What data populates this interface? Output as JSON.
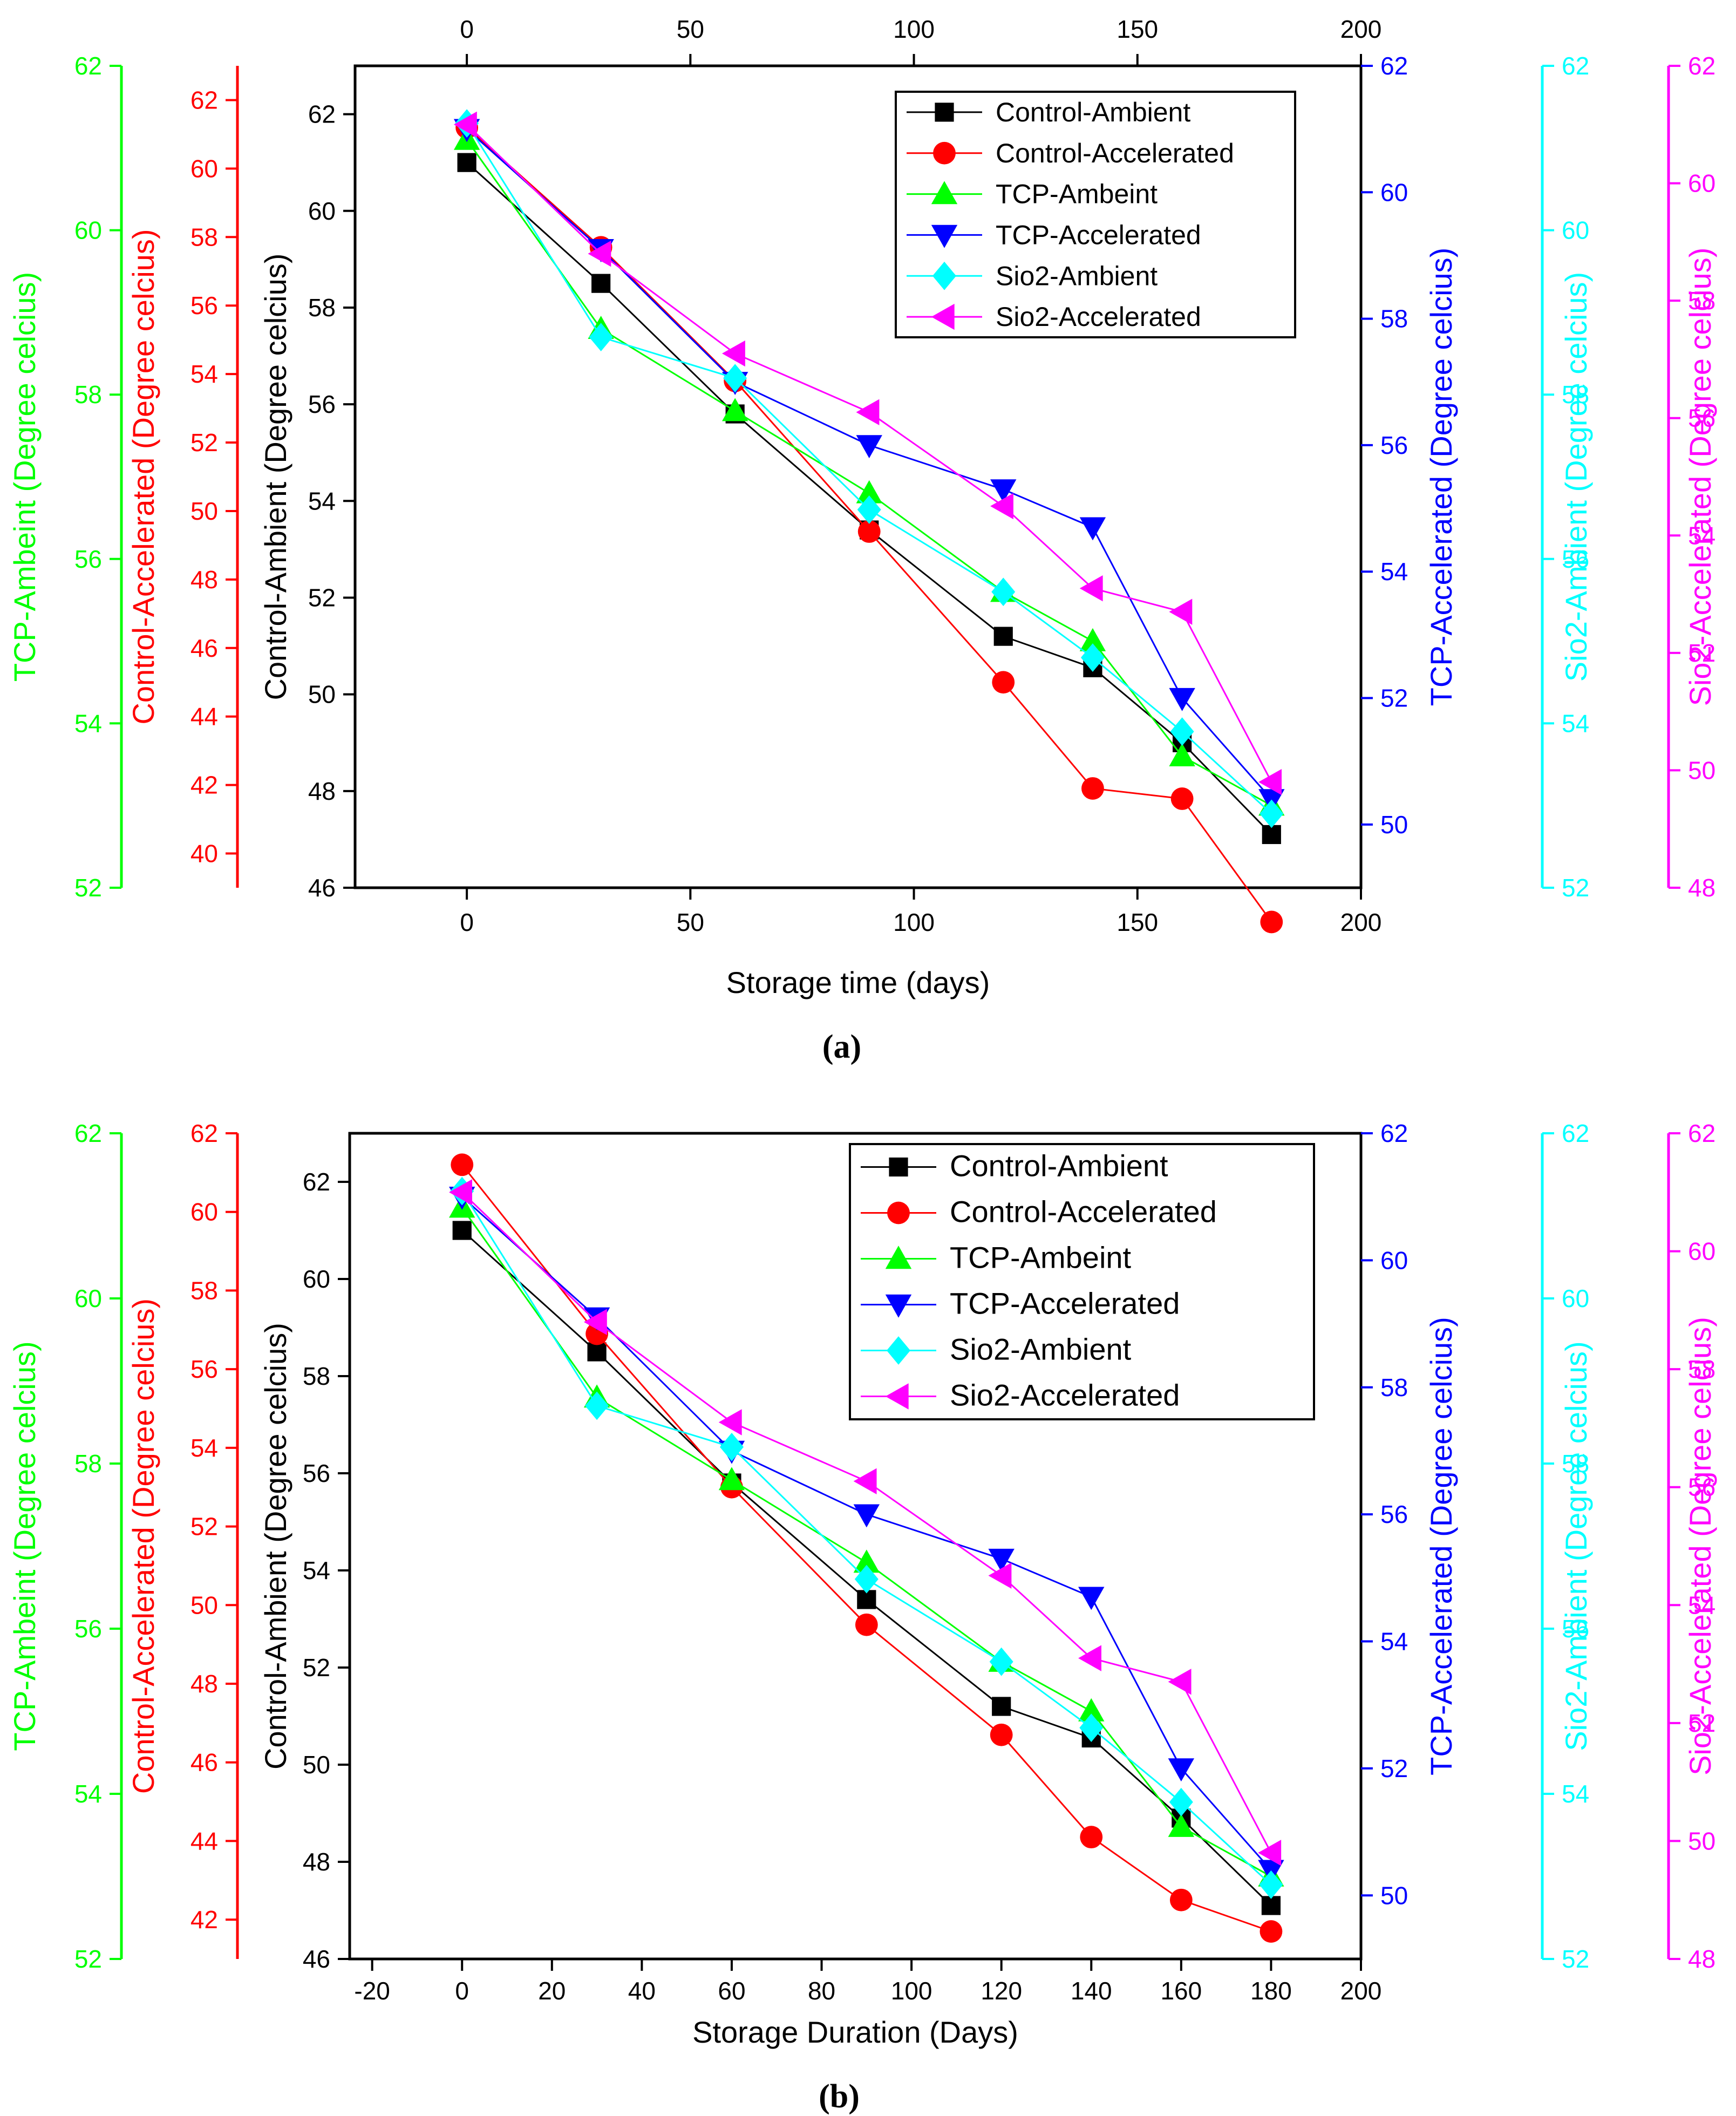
{
  "chart_data": [
    {
      "type": "line",
      "panel_label": "(a)",
      "xlabel": "Storage time (days)",
      "xlim": [
        -25,
        200
      ],
      "xticks": [
        0,
        50,
        100,
        150,
        200
      ],
      "top_xticks": [
        0,
        50,
        100,
        150,
        200
      ],
      "x": [
        0,
        30,
        60,
        90,
        120,
        140,
        160,
        180
      ],
      "legend_position": "top-right",
      "axes": {
        "control_ambient": {
          "label": "Control-Ambient (Degree celcius)",
          "color": "#000000",
          "ylim": [
            46,
            63
          ],
          "ticks": [
            46,
            48,
            50,
            52,
            54,
            56,
            58,
            60,
            62
          ]
        },
        "control_accelerated": {
          "label": "Control-Accelerated (Degree celcius)",
          "color": "#ff0000",
          "ylim": [
            39,
            63
          ],
          "ticks": [
            40,
            42,
            44,
            46,
            48,
            50,
            52,
            54,
            56,
            58,
            60,
            62
          ]
        },
        "tcp_ambient": {
          "label": "TCP-Ambeint (Degree celcius)",
          "color": "#00ff00",
          "ylim": [
            52,
            62
          ],
          "ticks": [
            52,
            54,
            56,
            58,
            60,
            62
          ]
        },
        "tcp_accelerated": {
          "label": "TCP-Accelerated (Degree celcius)",
          "color": "#0000ff",
          "ylim": [
            49,
            62
          ],
          "ticks": [
            50,
            52,
            54,
            56,
            58,
            60,
            62
          ]
        },
        "sio2_ambient": {
          "label": "Sio2-Ambient (Degree celcius)",
          "color": "#00ffff",
          "ylim": [
            52,
            62
          ],
          "ticks": [
            52,
            54,
            56,
            58,
            60,
            62
          ]
        },
        "sio2_accelerated": {
          "label": "Sio2-Accelerated (Degree celcius)",
          "color": "#ff00ff",
          "ylim": [
            48,
            62
          ],
          "ticks": [
            48,
            50,
            52,
            54,
            56,
            58,
            60,
            62
          ]
        }
      },
      "series": [
        {
          "name": "Control-Ambient",
          "axis": "control_ambient",
          "color": "#000000",
          "marker": "square",
          "values": [
            61.0,
            58.5,
            55.8,
            53.4,
            51.2,
            50.55,
            49.0,
            47.1
          ]
        },
        {
          "name": "Control-Accelerated",
          "axis": "control_accelerated",
          "color": "#ff0000",
          "marker": "circle",
          "values": [
            61.2,
            57.7,
            53.8,
            49.4,
            45.0,
            41.9,
            41.6,
            38.0
          ]
        },
        {
          "name": "TCP-Ambeint",
          "axis": "tcp_ambient",
          "color": "#00ff00",
          "marker": "triangle-up",
          "values": [
            61.1,
            58.8,
            57.8,
            56.8,
            55.6,
            55.0,
            53.6,
            53.0
          ]
        },
        {
          "name": "TCP-Accelerated",
          "axis": "tcp_accelerated",
          "color": "#0000ff",
          "marker": "triangle-down",
          "values": [
            61.0,
            59.1,
            57.0,
            56.0,
            55.3,
            54.7,
            52.0,
            50.4
          ]
        },
        {
          "name": "Sio2-Ambient",
          "axis": "sio2_ambient",
          "color": "#00ffff",
          "marker": "diamond",
          "values": [
            61.3,
            58.7,
            58.2,
            56.6,
            55.6,
            54.8,
            53.9,
            52.9
          ]
        },
        {
          "name": "Sio2-Accelerated",
          "axis": "sio2_accelerated",
          "color": "#ff00ff",
          "marker": "triangle-left",
          "values": [
            61.0,
            58.8,
            57.1,
            56.1,
            54.5,
            53.1,
            52.7,
            49.8
          ]
        }
      ]
    },
    {
      "type": "line",
      "panel_label": "(b)",
      "xlabel": "Storage Duration (Days)",
      "xlim": [
        -25,
        200
      ],
      "xticks": [
        -20,
        0,
        20,
        40,
        60,
        80,
        100,
        120,
        140,
        160,
        180,
        200
      ],
      "top_xticks": [],
      "x": [
        0,
        30,
        60,
        90,
        120,
        140,
        160,
        180
      ],
      "legend_position": "top-right",
      "axes": {
        "control_ambient": {
          "label": "Control-Ambient (Degree celcius)",
          "color": "#000000",
          "ylim": [
            46,
            63
          ],
          "ticks": [
            46,
            48,
            50,
            52,
            54,
            56,
            58,
            60,
            62
          ]
        },
        "control_accelerated": {
          "label": "Control-Accelerated (Degree celcius)",
          "color": "#ff0000",
          "ylim": [
            41,
            62
          ],
          "ticks": [
            42,
            44,
            46,
            48,
            50,
            52,
            54,
            56,
            58,
            60,
            62
          ]
        },
        "tcp_ambient": {
          "label": "TCP-Ambeint (Degree celcius)",
          "color": "#00ff00",
          "ylim": [
            52,
            62
          ],
          "ticks": [
            52,
            54,
            56,
            58,
            60,
            62
          ]
        },
        "tcp_accelerated": {
          "label": "TCP-Accelerated (Degree celcius)",
          "color": "#0000ff",
          "ylim": [
            49,
            62
          ],
          "ticks": [
            50,
            52,
            54,
            56,
            58,
            60,
            62
          ]
        },
        "sio2_ambient": {
          "label": "Sio2-Ambient (Degree celcius)",
          "color": "#00ffff",
          "ylim": [
            52,
            62
          ],
          "ticks": [
            52,
            54,
            56,
            58,
            60,
            62
          ]
        },
        "sio2_accelerated": {
          "label": "Sio2-Accelerated (Degree celcius)",
          "color": "#ff00ff",
          "ylim": [
            48,
            62
          ],
          "ticks": [
            48,
            50,
            52,
            54,
            56,
            58,
            60,
            62
          ]
        }
      },
      "series": [
        {
          "name": "Control-Ambient",
          "axis": "control_ambient",
          "color": "#000000",
          "marker": "square",
          "values": [
            61.0,
            58.5,
            55.8,
            53.4,
            51.2,
            50.55,
            48.9,
            47.1
          ]
        },
        {
          "name": "Control-Accelerated",
          "axis": "control_accelerated",
          "color": "#ff0000",
          "marker": "circle",
          "values": [
            61.2,
            56.9,
            53.0,
            49.5,
            46.7,
            44.1,
            42.5,
            41.7
          ]
        },
        {
          "name": "TCP-Ambeint",
          "axis": "tcp_ambient",
          "color": "#00ff00",
          "marker": "triangle-up",
          "values": [
            61.1,
            58.8,
            57.8,
            56.8,
            55.6,
            55.0,
            53.6,
            53.0
          ]
        },
        {
          "name": "TCP-Accelerated",
          "axis": "tcp_accelerated",
          "color": "#0000ff",
          "marker": "triangle-down",
          "values": [
            61.0,
            59.1,
            57.0,
            56.0,
            55.3,
            54.7,
            52.0,
            50.4
          ]
        },
        {
          "name": "Sio2-Ambient",
          "axis": "sio2_ambient",
          "color": "#00ffff",
          "marker": "diamond",
          "values": [
            61.3,
            58.7,
            58.2,
            56.6,
            55.6,
            54.8,
            53.9,
            52.9
          ]
        },
        {
          "name": "Sio2-Accelerated",
          "axis": "sio2_accelerated",
          "color": "#ff00ff",
          "marker": "triangle-left",
          "values": [
            61.0,
            58.8,
            57.1,
            56.1,
            54.5,
            53.1,
            52.7,
            49.8
          ]
        }
      ]
    }
  ]
}
